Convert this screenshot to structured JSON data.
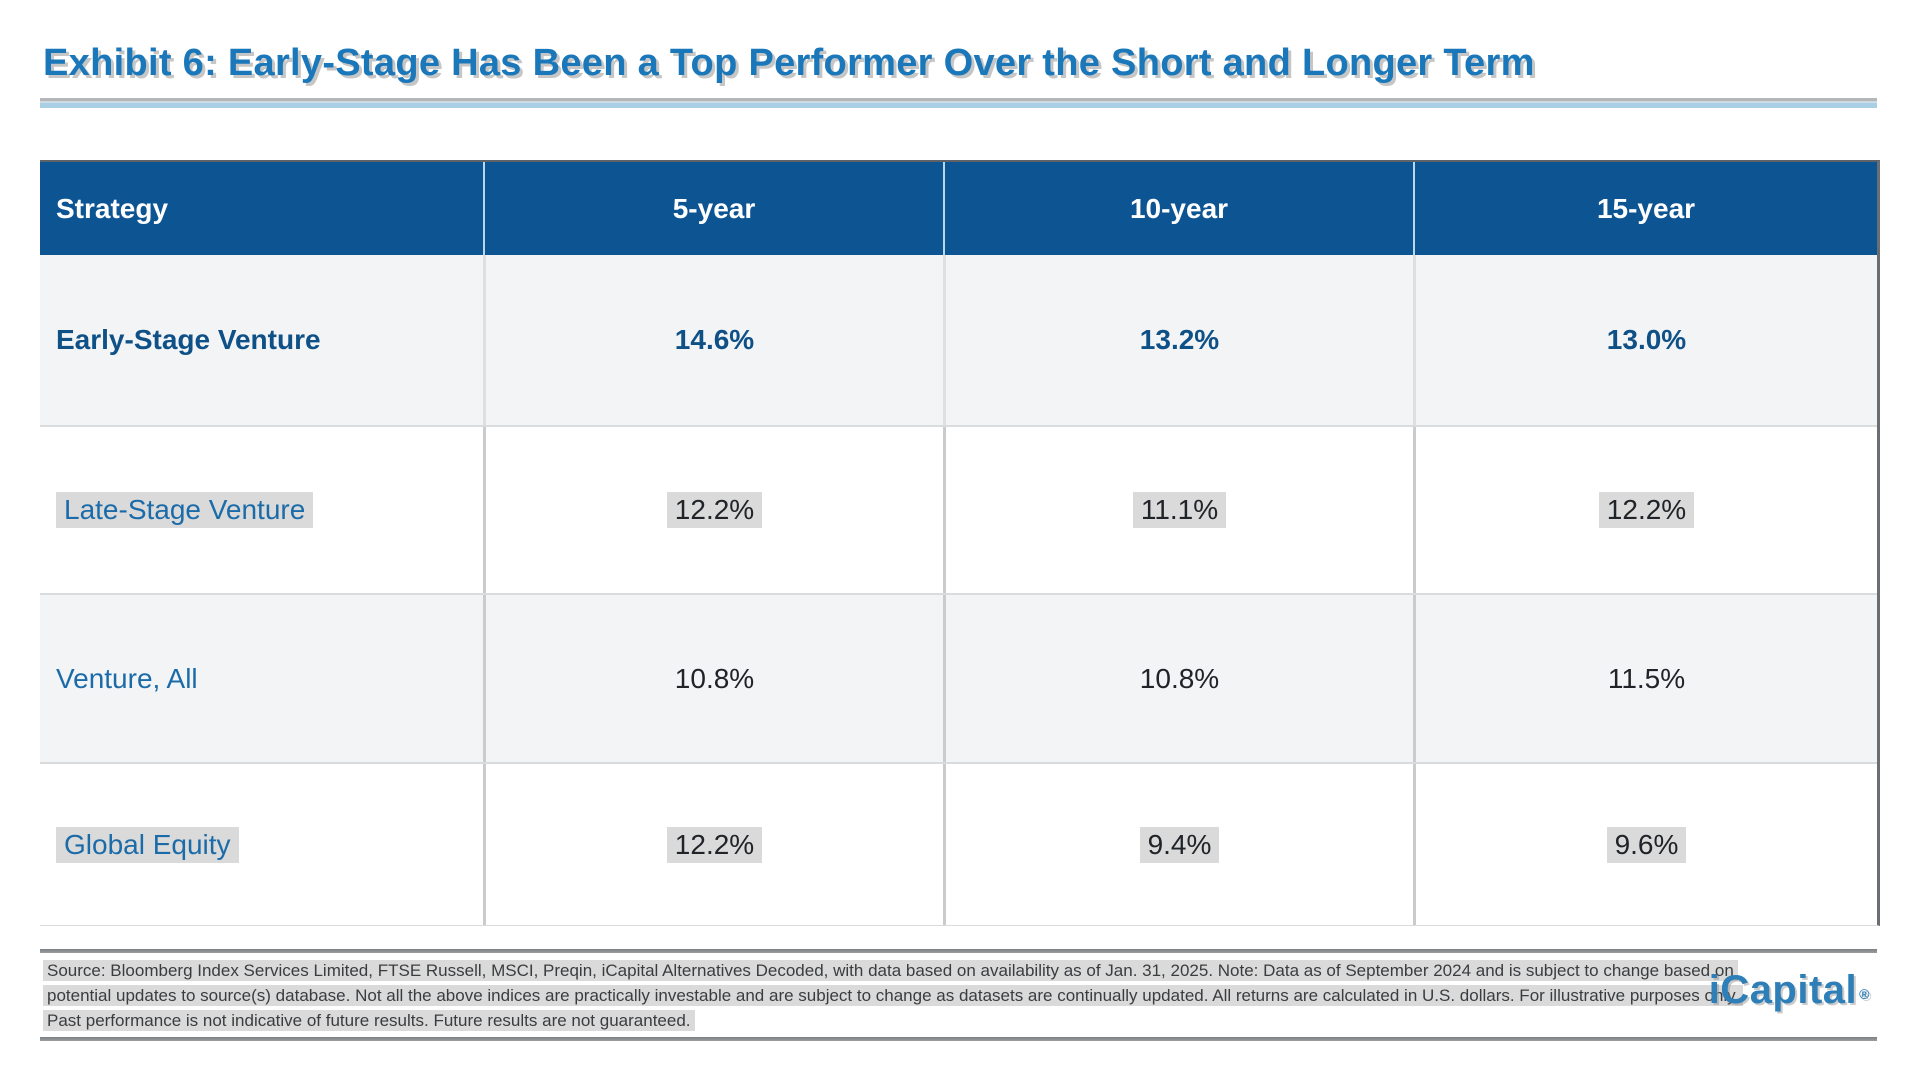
{
  "title": "Exhibit 6: Early-Stage Has Been a Top Performer Over the Short and Longer Term",
  "table": {
    "columns": [
      "Strategy",
      "5-year",
      "10-year",
      "15-year"
    ],
    "rows": [
      {
        "strategy": "Early-Stage Venture",
        "values": [
          "14.6%",
          "13.2%",
          "13.0%"
        ]
      },
      {
        "strategy": "Late-Stage Venture",
        "values": [
          "12.2%",
          "11.1%",
          "12.2%"
        ]
      },
      {
        "strategy": "Venture, All",
        "values": [
          "10.8%",
          "10.8%",
          "11.5%"
        ]
      },
      {
        "strategy": "Global Equity",
        "values": [
          "12.2%",
          "9.4%",
          "9.6%"
        ]
      }
    ]
  },
  "footnote": {
    "lines": [
      "Source: Bloomberg Index Services Limited, FTSE Russell, MSCI, Preqin, iCapital Alternatives Decoded, with data based on availability as of Jan. 31, 2025. Note: Data as of September 2024 and is subject to change based on",
      "potential updates to source(s) database. Not all the above indices are practically investable and are subject to change as datasets are continually updated. All returns are calculated in U.S. dollars. For illustrative purposes only.",
      "Past performance is not indicative of future results. Future results are not guaranteed."
    ]
  },
  "logo": {
    "text": "iCapital",
    "mark": "®"
  },
  "colors": {
    "header_bg": "#0d5493",
    "title_blue": "#1a78ba",
    "label_blue": "#1c6ba9",
    "highlight_blue": "#0f5086",
    "row_alt_bg": "#f3f4f6",
    "value_text": "#202327",
    "rule_blue": "#a9cfe6",
    "logo_blue": "#2e7eb8"
  }
}
